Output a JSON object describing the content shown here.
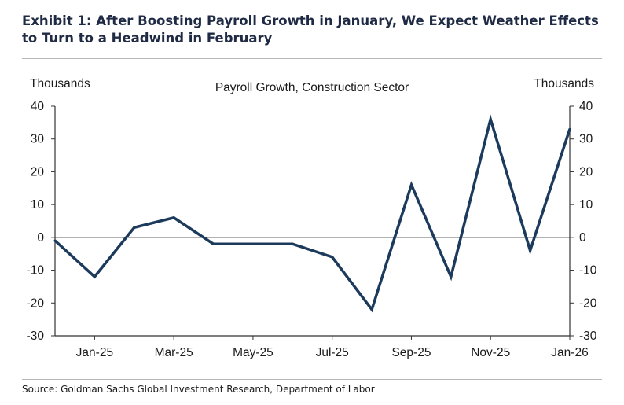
{
  "header": {
    "title": "Exhibit 1: After Boosting Payroll Growth in January, We Expect Weather Effects to Turn to a Headwind in February"
  },
  "footer": {
    "source": "Source: Goldman Sachs Global Investment Research, Department of Labor"
  },
  "chart_data": {
    "type": "line",
    "title": "Payroll Growth, Construction Sector",
    "ylabel_left": "Thousands",
    "ylabel_right": "Thousands",
    "ylim": [
      -30,
      40
    ],
    "yticks": [
      40,
      30,
      20,
      10,
      0,
      -10,
      -20,
      -30
    ],
    "x_tick_labels": [
      "Jan-25",
      "Mar-25",
      "May-25",
      "Jul-25",
      "Sep-25",
      "Nov-25",
      "Jan-26"
    ],
    "x": [
      "Dec-24",
      "Jan-25",
      "Feb-25",
      "Mar-25",
      "Apr-25",
      "May-25",
      "Jun-25",
      "Jul-25",
      "Aug-25",
      "Sep-25",
      "Oct-25",
      "Nov-25",
      "Dec-25",
      "Jan-26"
    ],
    "series": [
      {
        "values": [
          -1,
          -12,
          3,
          6,
          -2,
          -2,
          -2,
          -6,
          -22,
          16,
          -12,
          36,
          -4,
          33
        ],
        "color": "#1b3a5c"
      }
    ],
    "zero_line": true,
    "grid": false,
    "legend": "none"
  }
}
